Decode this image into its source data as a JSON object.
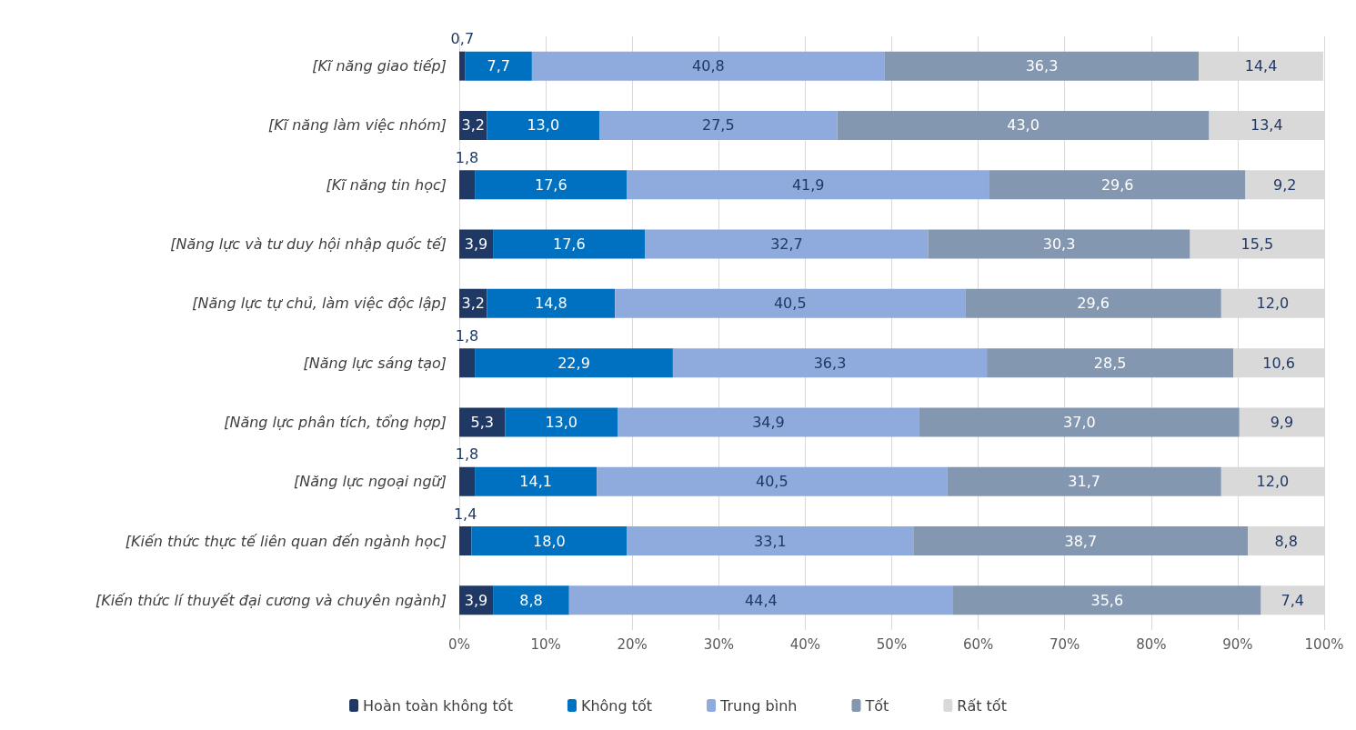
{
  "chart_data": {
    "type": "bar",
    "orientation": "horizontal",
    "stacked": true,
    "categories": [
      "[Kĩ năng giao tiếp]",
      "[Kĩ năng làm việc nhóm]",
      "[Kĩ năng tin học]",
      "[Năng lực và tư duy hội nhập quốc tế]",
      "[Năng lực tự chủ, làm việc độc lập]",
      "[Năng lực sáng tạo]",
      "[Năng lực phân tích, tổng hợp]",
      "[Năng lực ngoại ngữ]",
      "[Kiến thức thực tế liên quan đến ngành học]",
      "[Kiến thức lí thuyết đại cương và chuyên ngành]"
    ],
    "series": [
      {
        "name": "Hoàn toàn không tốt",
        "color": "#1f3864",
        "values": [
          0.7,
          3.2,
          1.8,
          3.9,
          3.2,
          1.8,
          5.3,
          1.8,
          1.4,
          3.9
        ],
        "value_labels": [
          "0,7",
          "3,2",
          "1,8",
          "3,9",
          "3,2",
          "1,8",
          "5,3",
          "1,8",
          "1,4",
          "3,9"
        ]
      },
      {
        "name": "Không tốt",
        "color": "#0070c0",
        "values": [
          7.7,
          13.0,
          17.6,
          17.6,
          14.8,
          22.9,
          13.0,
          14.1,
          18.0,
          8.8
        ],
        "value_labels": [
          "7,7",
          "13,0",
          "17,6",
          "17,6",
          "14,8",
          "22,9",
          "13,0",
          "14,1",
          "18,0",
          "8,8"
        ]
      },
      {
        "name": "Trung bình",
        "color": "#8faadc",
        "values": [
          40.8,
          27.5,
          41.9,
          32.7,
          40.5,
          36.3,
          34.9,
          40.5,
          33.1,
          44.4
        ],
        "value_labels": [
          "40,8",
          "27,5",
          "41,9",
          "32,7",
          "40,5",
          "36,3",
          "34,9",
          "40,5",
          "33,1",
          "44,4"
        ]
      },
      {
        "name": "Tốt",
        "color": "#8497b0",
        "values": [
          36.3,
          43.0,
          29.6,
          30.3,
          29.6,
          28.5,
          37.0,
          31.7,
          38.7,
          35.6
        ],
        "value_labels": [
          "36,3",
          "43,0",
          "29,6",
          "30,3",
          "29,6",
          "28,5",
          "37,0",
          "31,7",
          "38,7",
          "35,6"
        ]
      },
      {
        "name": "Rất tốt",
        "color": "#d9d9d9",
        "values": [
          14.4,
          13.4,
          9.2,
          15.5,
          12.0,
          10.6,
          9.9,
          12.0,
          8.8,
          7.4
        ],
        "value_labels": [
          "14,4",
          "13,4",
          "9,2",
          "15,5",
          "12,0",
          "10,6",
          "9,9",
          "12,0",
          "8,8",
          "7,4"
        ]
      }
    ],
    "xlim": [
      0,
      100
    ],
    "xticks": [
      {
        "value": 0,
        "label": "0%"
      },
      {
        "value": 10,
        "label": "10%"
      },
      {
        "value": 20,
        "label": "20%"
      },
      {
        "value": 30,
        "label": "30%"
      },
      {
        "value": 40,
        "label": "40%"
      },
      {
        "value": 50,
        "label": "50%"
      },
      {
        "value": 60,
        "label": "60%"
      },
      {
        "value": 70,
        "label": "70%"
      },
      {
        "value": 80,
        "label": "80%"
      },
      {
        "value": 90,
        "label": "90%"
      },
      {
        "value": 100,
        "label": "100%"
      }
    ],
    "grid": "x",
    "legend": "bottom"
  }
}
